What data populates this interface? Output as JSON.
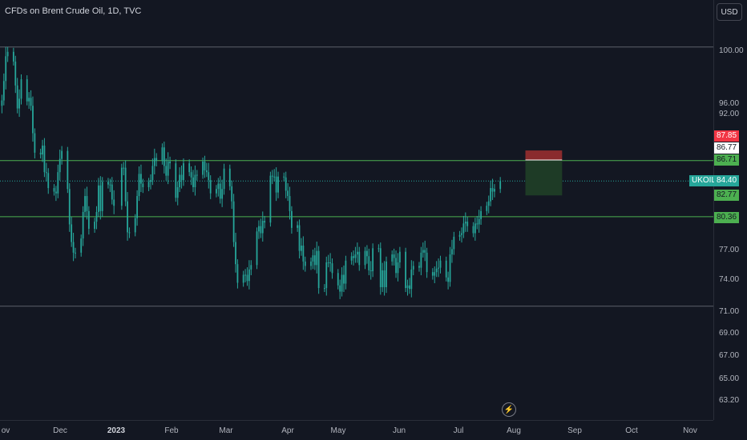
{
  "header": {
    "title": "CFDs on Brent Crude Oil, 1D, TVC",
    "currency_button": "USD"
  },
  "colors": {
    "up": "#26a69a",
    "down": "#26a69a",
    "level_line": "#4caf50",
    "stop_zone": "#8a2b2d",
    "target_zone": "#1e3b26",
    "bg": "#131722"
  },
  "price_axis": {
    "ticks": [
      "100.00",
      "96.00",
      "92.00",
      "77.00",
      "74.00",
      "71.00",
      "69.00",
      "67.00",
      "65.00",
      "63.20"
    ],
    "labels": {
      "stop": "87.85",
      "entry": "86.77",
      "level_upper": "86.71",
      "symbol": "UKOIL",
      "last": "84.40",
      "target": "82.77",
      "level_lower": "80.36"
    }
  },
  "time_axis": {
    "labels": [
      "ov",
      "Dec",
      "2023",
      "Feb",
      "Mar",
      "Apr",
      "May",
      "Jun",
      "Jul",
      "Aug",
      "Sep",
      "Oct",
      "Nov"
    ]
  },
  "chart_data": {
    "type": "candlestick",
    "symbol": "UKOIL",
    "title": "CFDs on Brent Crude Oil, 1D, TVC",
    "currency": "USD",
    "x_range": [
      "2022-11-01",
      "2023-11-10"
    ],
    "horizontal_levels": [
      99.55,
      86.71,
      80.36,
      70.25
    ],
    "position": {
      "type": "long",
      "stop": 87.85,
      "entry": 86.77,
      "target": 82.77
    },
    "last_price": 84.4,
    "closes": [
      [
        1,
        93.5
      ],
      [
        2,
        95.7
      ],
      [
        3,
        98.5
      ],
      [
        4,
        99.0
      ],
      [
        7,
        97.9
      ],
      [
        8,
        95.2
      ],
      [
        9,
        92.6
      ],
      [
        10,
        93.7
      ],
      [
        11,
        95.9
      ],
      [
        14,
        93.4
      ],
      [
        15,
        93.8
      ],
      [
        16,
        92.9
      ],
      [
        17,
        89.8
      ],
      [
        18,
        87.6
      ],
      [
        21,
        87.4
      ],
      [
        22,
        88.4
      ],
      [
        23,
        85.4
      ],
      [
        24,
        85.3
      ],
      [
        25,
        83.6
      ],
      [
        28,
        83.2
      ],
      [
        29,
        83.0
      ],
      [
        30,
        85.4
      ],
      [
        31,
        86.9
      ],
      [
        32,
        87.8
      ],
      [
        35,
        83.5
      ],
      [
        36,
        79.5
      ],
      [
        37,
        77.5
      ],
      [
        38,
        76.3
      ],
      [
        39,
        76.3
      ],
      [
        42,
        77.9
      ],
      [
        43,
        80.9
      ],
      [
        44,
        82.7
      ],
      [
        45,
        81.0
      ],
      [
        46,
        79.0
      ],
      [
        49,
        79.8
      ],
      [
        50,
        80.9
      ],
      [
        51,
        83.9
      ],
      [
        52,
        81.0
      ],
      [
        53,
        84.3
      ],
      [
        56,
        84.0
      ],
      [
        57,
        84.0
      ],
      [
        58,
        82.3
      ],
      [
        59,
        81.6
      ],
      [
        63,
        85.9
      ],
      [
        64,
        85.9
      ],
      [
        65,
        82.1
      ],
      [
        66,
        78.6
      ],
      [
        67,
        78.6
      ],
      [
        70,
        80.2
      ],
      [
        71,
        82.7
      ],
      [
        72,
        85.2
      ],
      [
        73,
        84.1
      ],
      [
        74,
        83.7
      ],
      [
        77,
        84.3
      ],
      [
        78,
        84.5
      ],
      [
        79,
        86.1
      ],
      [
        80,
        87.0
      ],
      [
        81,
        86.7
      ],
      [
        84,
        88.2
      ],
      [
        85,
        86.1
      ],
      [
        86,
        85.0
      ],
      [
        87,
        86.6
      ],
      [
        88,
        86.4
      ],
      [
        91,
        82.5
      ],
      [
        92,
        83.7
      ],
      [
        93,
        85.1
      ],
      [
        94,
        84.5
      ],
      [
        95,
        86.4
      ],
      [
        98,
        85.4
      ],
      [
        99,
        84.8
      ],
      [
        100,
        83.7
      ],
      [
        101,
        85.1
      ],
      [
        102,
        85.1
      ],
      [
        105,
        86.6
      ],
      [
        106,
        85.6
      ],
      [
        107,
        85.4
      ],
      [
        108,
        84.5
      ],
      [
        109,
        83.0
      ],
      [
        112,
        83.5
      ],
      [
        113,
        84.1
      ],
      [
        114,
        82.4
      ],
      [
        115,
        83.5
      ],
      [
        116,
        85.8
      ],
      [
        119,
        83.8
      ],
      [
        120,
        82.1
      ],
      [
        121,
        77.5
      ],
      [
        122,
        75.0
      ],
      [
        123,
        72.9
      ],
      [
        126,
        73.8
      ],
      [
        127,
        73.8
      ],
      [
        128,
        73.1
      ],
      [
        129,
        74.4
      ],
      [
        130,
        74.9
      ],
      [
        133,
        78.7
      ],
      [
        134,
        79.3
      ],
      [
        135,
        78.5
      ],
      [
        136,
        79.9
      ],
      [
        137,
        79.7
      ],
      [
        140,
        85.0
      ],
      [
        141,
        84.9
      ],
      [
        142,
        84.9
      ],
      [
        143,
        83.1
      ],
      [
        144,
        84.9
      ],
      [
        147,
        84.8
      ],
      [
        148,
        83.3
      ],
      [
        149,
        82.7
      ],
      [
        150,
        81.0
      ],
      [
        151,
        79.1
      ],
      [
        154,
        79.4
      ],
      [
        155,
        76.5
      ],
      [
        156,
        77.1
      ],
      [
        157,
        75.3
      ],
      [
        158,
        74.8
      ],
      [
        161,
        75.3
      ],
      [
        162,
        76.0
      ],
      [
        163,
        74.9
      ],
      [
        164,
        76.5
      ],
      [
        165,
        72.3
      ],
      [
        168,
        72.3
      ],
      [
        169,
        75.2
      ],
      [
        170,
        75.2
      ],
      [
        171,
        75.1
      ],
      [
        172,
        74.0
      ],
      [
        175,
        72.6
      ],
      [
        176,
        71.9
      ],
      [
        177,
        73.8
      ],
      [
        178,
        72.8
      ],
      [
        179,
        75.4
      ],
      [
        182,
        75.9
      ],
      [
        183,
        75.7
      ],
      [
        184,
        76.1
      ],
      [
        185,
        76.4
      ],
      [
        186,
        74.9
      ],
      [
        189,
        76.5
      ],
      [
        190,
        75.9
      ],
      [
        191,
        74.3
      ],
      [
        192,
        74.2
      ],
      [
        193,
        76.8
      ],
      [
        196,
        76.8
      ],
      [
        197,
        72.4
      ],
      [
        198,
        74.3
      ],
      [
        199,
        72.4
      ],
      [
        200,
        75.3
      ],
      [
        203,
        76.1
      ],
      [
        204,
        75.7
      ],
      [
        205,
        74.0
      ],
      [
        206,
        75.2
      ],
      [
        207,
        76.4
      ],
      [
        210,
        72.3
      ],
      [
        211,
        72.6
      ],
      [
        212,
        72.2
      ],
      [
        213,
        74.4
      ],
      [
        214,
        74.8
      ],
      [
        217,
        74.6
      ],
      [
        218,
        76.3
      ],
      [
        219,
        76.6
      ],
      [
        220,
        76.3
      ],
      [
        221,
        74.1
      ],
      [
        224,
        73.7
      ],
      [
        225,
        74.1
      ],
      [
        226,
        74.5
      ],
      [
        227,
        74.6
      ],
      [
        228,
        75.4
      ],
      [
        231,
        73.5
      ],
      [
        232,
        73.0
      ],
      [
        233,
        76.1
      ],
      [
        234,
        76.7
      ],
      [
        235,
        78.1
      ],
      [
        238,
        78.3
      ],
      [
        239,
        78.5
      ],
      [
        240,
        79.6
      ],
      [
        241,
        79.8
      ],
      [
        242,
        79.3
      ],
      [
        245,
        78.5
      ],
      [
        246,
        79.6
      ],
      [
        247,
        79.5
      ],
      [
        248,
        80.1
      ],
      [
        249,
        81.0
      ],
      [
        252,
        81.6
      ],
      [
        253,
        82.1
      ],
      [
        254,
        83.6
      ],
      [
        255,
        83.2
      ],
      [
        256,
        83.5
      ],
      [
        259,
        84.4
      ]
    ]
  }
}
